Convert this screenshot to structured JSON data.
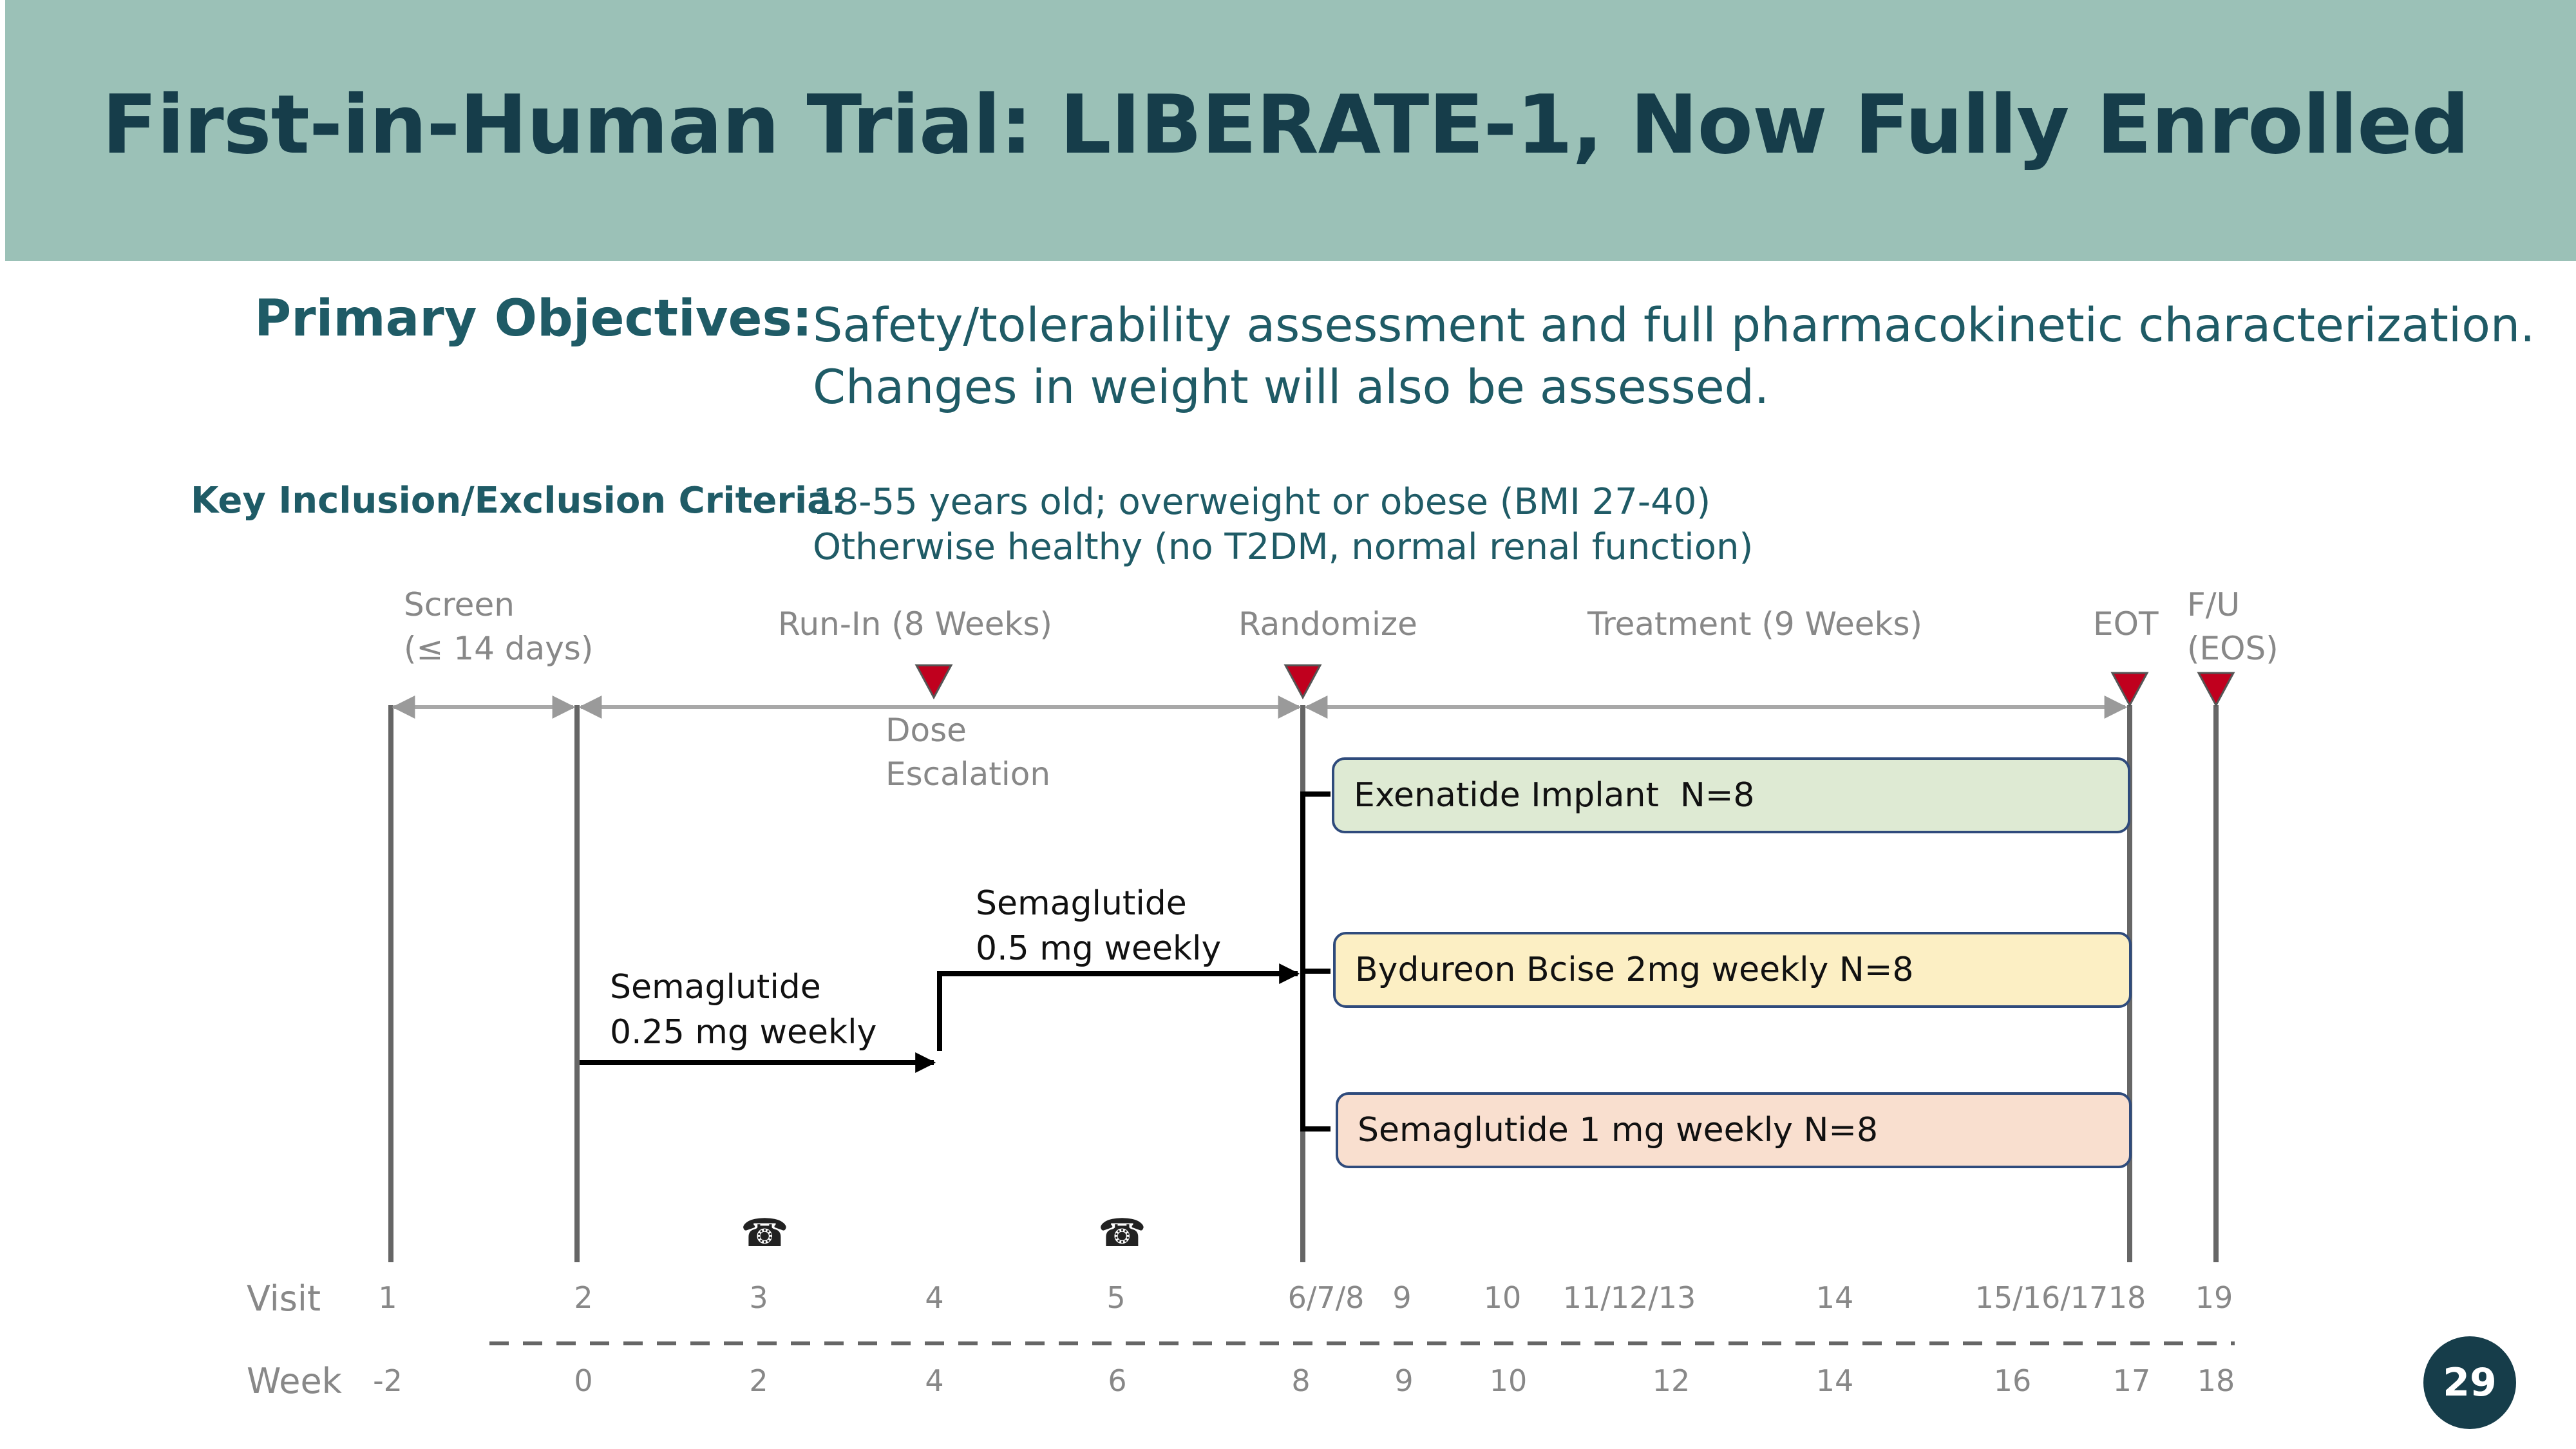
{
  "title": "First-in-Human Trial: LIBERATE-1, Now Fully Enrolled",
  "objectives": {
    "label": "Primary Objectives:",
    "line1": "Safety/tolerability assessment and full pharmacokinetic characterization.",
    "line2": "Changes in weight will also be assessed."
  },
  "criteria": {
    "label": "Key Inclusion/Exclusion Criteria:",
    "line1": "18-55 years old; overweight or obese (BMI 27-40)",
    "line2": "Otherwise healthy (no T2DM, normal renal function)"
  },
  "timeline": {
    "screen_line1": "Screen",
    "screen_line2": "(≤ 14 days)",
    "runin": "Run-In (8 Weeks)",
    "randomize": "Randomize",
    "treatment": "Treatment (9 Weeks)",
    "eot": "EOT",
    "fu_line1": "F/U",
    "fu_line2": "(EOS)",
    "dose_escalation_line1": "Dose",
    "dose_escalation_line2": "Escalation"
  },
  "doses": {
    "step1_line1": "Semaglutide",
    "step1_line2": "0.25 mg weekly",
    "step2_line1": "Semaglutide",
    "step2_line2": "0.5 mg weekly"
  },
  "arms": [
    {
      "label": "Exenatide Implant  N=8",
      "color": "#deead3"
    },
    {
      "label": "Bydureon Bcise 2mg weekly N=8",
      "color": "#fcefc4"
    },
    {
      "label": "Semaglutide 1 mg weekly N=8",
      "color": "#f9dfcf"
    }
  ],
  "marker_color": "#c0001e",
  "phone_icon": "☎",
  "visit_row": {
    "label": "Visit",
    "values": [
      "1",
      "2",
      "3",
      "4",
      "5",
      "6/7/8",
      "9",
      "10",
      "11/12/13",
      "14",
      "15/16/17",
      "18",
      "19"
    ]
  },
  "week_row": {
    "label": "Week",
    "values": [
      "-2",
      "0",
      "2",
      "4",
      "6",
      "8",
      "9",
      "10",
      "12",
      "14",
      "16",
      "17",
      "18"
    ]
  },
  "page_number": "29"
}
